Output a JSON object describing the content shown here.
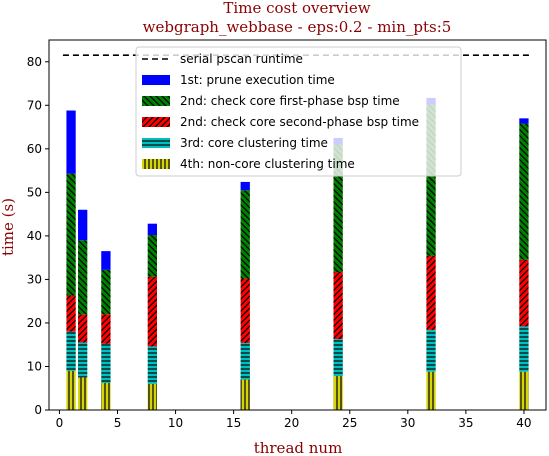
{
  "chart_data": {
    "type": "bar",
    "stacked": true,
    "title": "Time cost overview",
    "subtitle": "webgraph_webbase - eps:0.2 - min_pts:5",
    "xlabel": "thread num",
    "ylabel": "time (s)",
    "xlim": [
      -0.9,
      41.9
    ],
    "ylim": [
      0,
      85
    ],
    "xticks": [
      0,
      5,
      10,
      15,
      20,
      25,
      30,
      35,
      40
    ],
    "yticks": [
      0,
      10,
      20,
      30,
      40,
      50,
      60,
      70,
      80
    ],
    "x": [
      1,
      2,
      4,
      8,
      16,
      24,
      32,
      40
    ],
    "bar_width": 0.8,
    "serial_runtime": {
      "name": "serial pscan runtime",
      "value": 81.5,
      "color": "#000000"
    },
    "series": [
      {
        "name": "4th: non-core clustering time",
        "color": "#d4d40a",
        "hatch": "vertical",
        "values": [
          9,
          7.5,
          6.2,
          6,
          7,
          7.8,
          8.8,
          8.8
        ]
      },
      {
        "name": "3rd: core clustering time",
        "color": "#00bfbf",
        "hatch": "horizontal",
        "values": [
          9,
          8,
          9,
          8.6,
          8.4,
          8.5,
          9.6,
          10.4
        ]
      },
      {
        "name": "2nd: check core second-phase bsp time",
        "color": "#ff0000",
        "hatch": "diagonal",
        "values": [
          8.3,
          6.5,
          6.8,
          16,
          14.8,
          15.4,
          17,
          15.3
        ]
      },
      {
        "name": "2nd: check core first-phase bsp time",
        "color": "#008000",
        "hatch": "diagonal-reverse",
        "values": [
          28,
          17,
          10.2,
          9.6,
          20.3,
          29.3,
          34.8,
          31.3
        ]
      },
      {
        "name": "1st: prune execution time",
        "color": "#0000ff",
        "hatch": "none",
        "values": [
          14.5,
          7,
          4.3,
          2.6,
          1.9,
          1.5,
          1.5,
          1.2
        ]
      }
    ],
    "legend": {
      "position": "top-center",
      "order": [
        "serial pscan runtime",
        "1st: prune execution time",
        "2nd: check core first-phase bsp time",
        "2nd: check core second-phase bsp time",
        "3rd: core clustering time",
        "4th: non-core clustering time"
      ]
    },
    "grid": false
  }
}
